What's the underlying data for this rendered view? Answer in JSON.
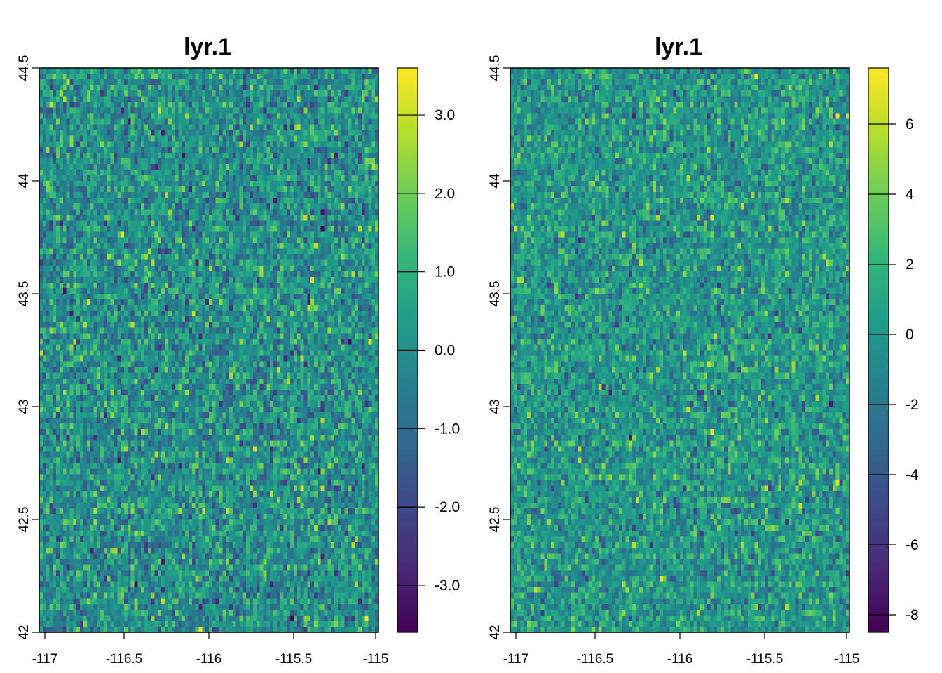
{
  "chart_data": [
    {
      "type": "heatmap",
      "title": "lyr.1",
      "xlim": [
        -117,
        -115
      ],
      "ylim": [
        42,
        44.5
      ],
      "x_ticks": [
        "-117",
        "-116.5",
        "-116",
        "-115.5",
        "-115"
      ],
      "x_tick_values": [
        -117,
        -116.5,
        -116,
        -115.5,
        -115
      ],
      "y_ticks": [
        "42",
        "42.5",
        "43",
        "43.5",
        "44",
        "44.5"
      ],
      "y_tick_values": [
        42,
        42.5,
        43,
        43.5,
        44,
        44.5
      ],
      "colorbar": {
        "palette": "viridis",
        "range": [
          -3.6,
          3.6
        ],
        "ticks": [
          "3.0",
          "2.0",
          "1.0",
          "0.0",
          "-1.0",
          "-2.0",
          "-3.0"
        ],
        "tick_values": [
          3,
          2,
          1,
          0,
          -1,
          -2,
          -3
        ]
      },
      "grid": {
        "cols": 100,
        "rows": 100,
        "distribution": "random normal",
        "mean": 0,
        "sd": 1
      }
    },
    {
      "type": "heatmap",
      "title": "lyr.1",
      "xlim": [
        -117,
        -115
      ],
      "ylim": [
        42,
        44.5
      ],
      "x_ticks": [
        "-117",
        "-116.5",
        "-116",
        "-115.5",
        "-115"
      ],
      "x_tick_values": [
        -117,
        -116.5,
        -116,
        -115.5,
        -115
      ],
      "y_ticks": [
        "42",
        "42.5",
        "43",
        "43.5",
        "44",
        "44.5"
      ],
      "y_tick_values": [
        42,
        42.5,
        43,
        43.5,
        44,
        44.5
      ],
      "colorbar": {
        "palette": "viridis",
        "range": [
          -8.5,
          7.6
        ],
        "ticks": [
          "6",
          "4",
          "2",
          "0",
          "-2",
          "-4",
          "-6",
          "-8"
        ],
        "tick_values": [
          6,
          4,
          2,
          0,
          -2,
          -4,
          -6,
          -8
        ]
      },
      "grid": {
        "cols": 100,
        "rows": 100,
        "distribution": "random normal",
        "mean": 0,
        "sd": 2
      }
    }
  ]
}
